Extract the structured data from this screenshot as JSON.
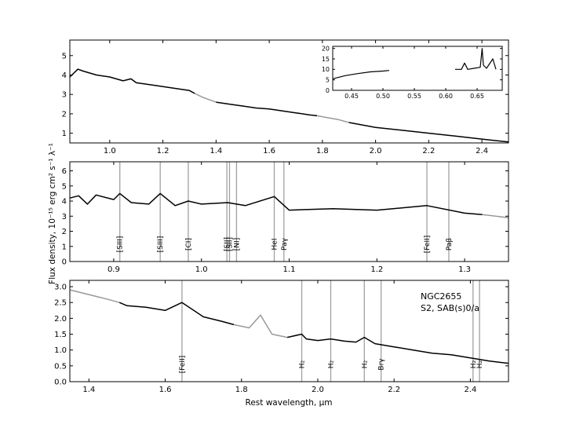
{
  "figure": {
    "xlabel": "Rest wavelength, μm",
    "ylabel": "Flux density, 10⁻¹⁵ erg cm² s⁻¹ λ⁻¹",
    "object_name": "NGC2655",
    "object_type": "S2,  SAB(s)0/a"
  },
  "chart_data": [
    {
      "type": "line",
      "panel": "top",
      "xlim": [
        0.85,
        2.5
      ],
      "ylim": [
        0.5,
        5.8
      ],
      "xticks": [
        "1.0",
        "1.2",
        "1.4",
        "1.6",
        "1.8",
        "2.0",
        "2.2",
        "2.4"
      ],
      "yticks": [
        "1",
        "2",
        "3",
        "4",
        "5"
      ],
      "xtick_values": [
        1.0,
        1.2,
        1.4,
        1.6,
        1.8,
        2.0,
        2.2,
        2.4
      ],
      "ytick_values": [
        1,
        2,
        3,
        4,
        5
      ],
      "series": [
        {
          "color": "#000000",
          "x": [
            0.85,
            0.88,
            0.9,
            0.95,
            1.0,
            1.05,
            1.08,
            1.1,
            1.15,
            1.2,
            1.25,
            1.3,
            1.32
          ],
          "y": [
            3.9,
            4.3,
            4.2,
            4.0,
            3.9,
            3.7,
            3.8,
            3.6,
            3.5,
            3.4,
            3.3,
            3.2,
            3.05
          ]
        },
        {
          "color": "#999999",
          "x": [
            1.32,
            1.35,
            1.4
          ],
          "y": [
            3.05,
            2.85,
            2.6
          ]
        },
        {
          "color": "#000000",
          "x": [
            1.4,
            1.45,
            1.5,
            1.55,
            1.6,
            1.65,
            1.7,
            1.75,
            1.78
          ],
          "y": [
            2.6,
            2.5,
            2.4,
            2.3,
            2.25,
            2.15,
            2.05,
            1.95,
            1.9
          ]
        },
        {
          "color": "#999999",
          "x": [
            1.78,
            1.82,
            1.86,
            1.9
          ],
          "y": [
            1.9,
            1.8,
            1.7,
            1.55
          ]
        },
        {
          "color": "#000000",
          "x": [
            1.9,
            2.0,
            2.1,
            2.2,
            2.3,
            2.4,
            2.5
          ],
          "y": [
            1.55,
            1.3,
            1.15,
            1.0,
            0.85,
            0.7,
            0.55
          ]
        }
      ],
      "inset": {
        "xlim": [
          0.42,
          0.69
        ],
        "ylim": [
          0,
          21
        ],
        "xticks": [
          "0.45",
          "0.50",
          "0.55",
          "0.60",
          "0.65"
        ],
        "yticks": [
          "0",
          "5",
          "10",
          "15",
          "20"
        ],
        "xtick_values": [
          0.45,
          0.5,
          0.55,
          0.6,
          0.65
        ],
        "ytick_values": [
          0,
          5,
          10,
          15,
          20
        ],
        "series": [
          {
            "color": "#000000",
            "x": [
              0.42,
              0.44,
              0.46,
              0.48,
              0.5,
              0.51
            ],
            "y": [
              5.5,
              7.0,
              8.0,
              8.8,
              9.2,
              9.5
            ]
          },
          {
            "color": "#000000",
            "x": [
              0.615,
              0.625,
              0.63,
              0.635,
              0.645,
              0.655,
              0.658,
              0.66,
              0.665,
              0.675,
              0.68
            ],
            "y": [
              10.0,
              10.0,
              13.0,
              10.0,
              10.5,
              11.0,
              20.0,
              12.0,
              10.5,
              15.0,
              10.0
            ]
          }
        ]
      }
    },
    {
      "type": "line",
      "panel": "middle",
      "xlim": [
        0.85,
        1.35
      ],
      "ylim": [
        0,
        6.6
      ],
      "xticks": [
        "0.9",
        "1.0",
        "1.1",
        "1.2",
        "1.3"
      ],
      "yticks": [
        "0",
        "1",
        "2",
        "3",
        "4",
        "5",
        "6"
      ],
      "xtick_values": [
        0.9,
        1.0,
        1.1,
        1.2,
        1.3
      ],
      "ytick_values": [
        0,
        1,
        2,
        3,
        4,
        5,
        6
      ],
      "series": [
        {
          "color": "#000000",
          "x": [
            0.85,
            0.86,
            0.87,
            0.88,
            0.9,
            0.907,
            0.92,
            0.94,
            0.953,
            0.97,
            0.985,
            1.0,
            1.03,
            1.05,
            1.083,
            1.1,
            1.15,
            1.2,
            1.257,
            1.3,
            1.32
          ],
          "y": [
            4.2,
            4.35,
            3.8,
            4.4,
            4.1,
            4.5,
            3.9,
            3.8,
            4.5,
            3.7,
            4.0,
            3.8,
            3.9,
            3.7,
            4.3,
            3.4,
            3.5,
            3.4,
            3.7,
            3.2,
            3.1
          ]
        },
        {
          "color": "#999999",
          "x": [
            1.32,
            1.35
          ],
          "y": [
            3.1,
            2.9
          ]
        }
      ],
      "lines": [
        {
          "x": 0.907,
          "label": "[SIII]"
        },
        {
          "x": 0.953,
          "label": "[SIII]"
        },
        {
          "x": 0.985,
          "label": "[CI]"
        },
        {
          "x": 1.029,
          "label": "[SII]"
        },
        {
          "x": 1.032,
          "label": "[SII]"
        },
        {
          "x": 1.04,
          "label": "[NI]"
        },
        {
          "x": 1.083,
          "label": "HeI"
        },
        {
          "x": 1.094,
          "label": "Paγ"
        },
        {
          "x": 1.257,
          "label": "[FeII]"
        },
        {
          "x": 1.282,
          "label": "Paβ"
        }
      ]
    },
    {
      "type": "line",
      "panel": "bottom",
      "xlim": [
        1.35,
        2.5
      ],
      "ylim": [
        0,
        3.2
      ],
      "xticks": [
        "1.4",
        "1.6",
        "1.8",
        "2.0",
        "2.2",
        "2.4"
      ],
      "yticks": [
        "0.0",
        "0.5",
        "1.0",
        "1.5",
        "2.0",
        "2.5",
        "3.0"
      ],
      "xtick_values": [
        1.4,
        1.6,
        1.8,
        2.0,
        2.2,
        2.4
      ],
      "ytick_values": [
        0,
        0.5,
        1.0,
        1.5,
        2.0,
        2.5,
        3.0
      ],
      "series": [
        {
          "color": "#999999",
          "x": [
            1.35,
            1.4,
            1.45,
            1.48
          ],
          "y": [
            2.9,
            2.75,
            2.6,
            2.5
          ]
        },
        {
          "color": "#000000",
          "x": [
            1.48,
            1.5,
            1.55,
            1.6,
            1.644,
            1.7,
            1.75,
            1.78
          ],
          "y": [
            2.5,
            2.4,
            2.35,
            2.25,
            2.5,
            2.05,
            1.9,
            1.8
          ]
        },
        {
          "color": "#999999",
          "x": [
            1.78,
            1.82,
            1.85,
            1.88,
            1.92
          ],
          "y": [
            1.8,
            1.7,
            2.1,
            1.5,
            1.4
          ]
        },
        {
          "color": "#000000",
          "x": [
            1.92,
            1.958,
            1.97,
            2.0,
            2.034,
            2.07,
            2.1,
            2.122,
            2.15,
            2.2,
            2.25,
            2.3,
            2.35,
            2.4,
            2.45,
            2.5
          ],
          "y": [
            1.4,
            1.5,
            1.35,
            1.3,
            1.35,
            1.28,
            1.25,
            1.4,
            1.2,
            1.1,
            1.0,
            0.9,
            0.85,
            0.75,
            0.65,
            0.58
          ]
        }
      ],
      "lines": [
        {
          "x": 1.644,
          "label": "[FeII]"
        },
        {
          "x": 1.958,
          "label": "H₂"
        },
        {
          "x": 2.034,
          "label": "H₂"
        },
        {
          "x": 2.122,
          "label": "H₂"
        },
        {
          "x": 2.166,
          "label": "Brγ"
        },
        {
          "x": 2.407,
          "label": "H₂"
        },
        {
          "x": 2.424,
          "label": "H₂"
        }
      ]
    }
  ]
}
